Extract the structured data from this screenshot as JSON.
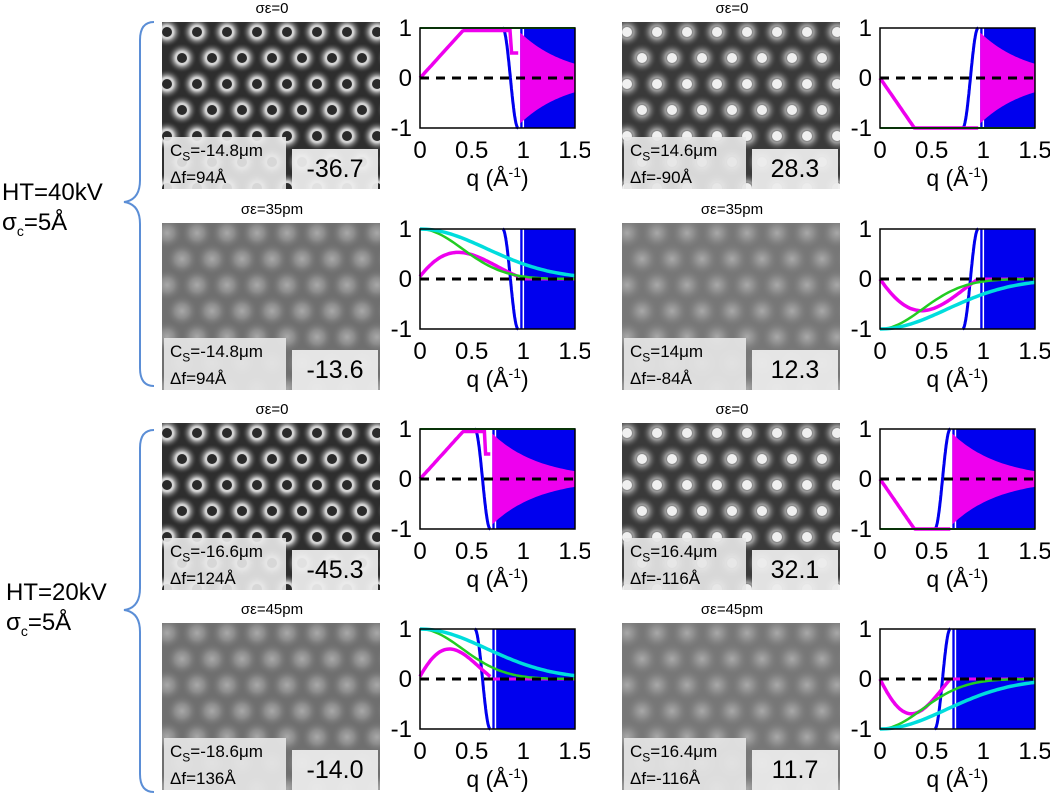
{
  "groups": [
    {
      "ht": "HT=40kV",
      "sigma_c": "σc=5Å"
    },
    {
      "ht": "HT=20kV",
      "sigma_c": "σc=5Å"
    }
  ],
  "x_axis": {
    "label": "q (Å",
    "label_sup": "-1",
    "label_close": ")",
    "ticks": [
      "0",
      "0.5",
      "1",
      "1.5"
    ]
  },
  "y_axis": {
    "ticks": [
      "1",
      "0",
      "-1"
    ]
  },
  "legend_colors": {
    "blue": "#0000ee",
    "magenta": "#ee00ee",
    "green": "#22cc22",
    "cyan": "#00dddd"
  },
  "panels": [
    {
      "title": "σε=0",
      "cs": "CS=-14.8μm",
      "cs_main": "C",
      "cs_sub": "S",
      "cs_rest": "=-14.8μm",
      "df": "Δf=94Å",
      "value": "-36.7",
      "contrast": "high",
      "inverted": false,
      "cutoff": 0.95,
      "mode": "pos",
      "sigma": false
    },
    {
      "title": "σε=0",
      "cs_main": "C",
      "cs_sub": "S",
      "cs_rest": "=14.6μm",
      "df": "Δf=-90Å",
      "value": "28.3",
      "contrast": "high",
      "inverted": true,
      "cutoff": 0.95,
      "mode": "neg",
      "sigma": false
    },
    {
      "title": "σε=35pm",
      "cs_main": "C",
      "cs_sub": "S",
      "cs_rest": "=-14.8μm",
      "df": "Δf=94Å",
      "value": "-13.6",
      "contrast": "low",
      "inverted": false,
      "cutoff": 0.95,
      "mode": "pos",
      "sigma": true
    },
    {
      "title": "σε=35pm",
      "cs_main": "C",
      "cs_sub": "S",
      "cs_rest": "=14μm",
      "df": "Δf=-84Å",
      "value": "12.3",
      "contrast": "low",
      "inverted": true,
      "cutoff": 0.95,
      "mode": "neg",
      "sigma": true
    },
    {
      "title": "σε=0",
      "cs_main": "C",
      "cs_sub": "S",
      "cs_rest": "=-16.6μm",
      "df": "Δf=124Å",
      "value": "-45.3",
      "contrast": "high",
      "inverted": false,
      "cutoff": 0.68,
      "mode": "pos",
      "sigma": false
    },
    {
      "title": "σε=0",
      "cs_main": "C",
      "cs_sub": "S",
      "cs_rest": "=16.4μm",
      "df": "Δf=-116Å",
      "value": "32.1",
      "contrast": "high",
      "inverted": true,
      "cutoff": 0.68,
      "mode": "neg",
      "sigma": false
    },
    {
      "title": "σε=45pm",
      "cs_main": "C",
      "cs_sub": "S",
      "cs_rest": "=-18.6μm",
      "df": "Δf=136Å",
      "value": "-14.0",
      "contrast": "low",
      "inverted": false,
      "cutoff": 0.68,
      "mode": "pos",
      "sigma": true
    },
    {
      "title": "σε=45pm",
      "cs_main": "C",
      "cs_sub": "S",
      "cs_rest": "=16.4μm",
      "df": "Δf=-116Å",
      "value": "11.7",
      "contrast": "low",
      "inverted": true,
      "cutoff": 0.68,
      "mode": "neg",
      "sigma": true
    }
  ]
}
